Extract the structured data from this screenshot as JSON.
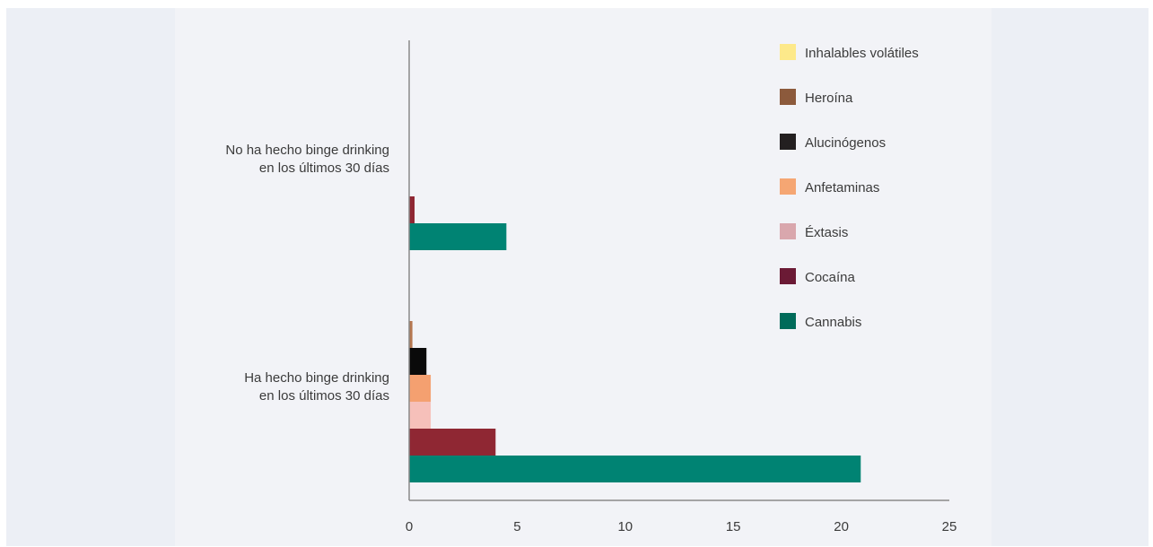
{
  "chart_data": {
    "type": "bar",
    "orientation": "horizontal",
    "title": "",
    "xlabel": "",
    "ylabel": "",
    "xlim": [
      0,
      25
    ],
    "x_ticks": [
      "0",
      "5",
      "10",
      "15",
      "20",
      "25"
    ],
    "grid": false,
    "legend_position": "top-right",
    "categories": [
      {
        "line1": "No ha hecho binge drinking",
        "line2": "en los últimos 30 días"
      },
      {
        "line1": "Ha hecho binge drinking",
        "line2": "en los últimos 30 días"
      }
    ],
    "series": [
      {
        "name": "Inhalables volátiles",
        "legend_color": "#fde98a",
        "bar_color": "#fde98a",
        "values": [
          0,
          0
        ]
      },
      {
        "name": "Heroína",
        "legend_color": "#8c5a3c",
        "bar_color": "#b5764f",
        "values": [
          0,
          0.15
        ]
      },
      {
        "name": "Alucinógenos",
        "legend_color": "#231f20",
        "bar_color": "#0a0a0a",
        "values": [
          0,
          0.8
        ]
      },
      {
        "name": "Anfetaminas",
        "legend_color": "#f5a673",
        "bar_color": "#f4a070",
        "values": [
          0,
          1.0
        ]
      },
      {
        "name": "Éxtasis",
        "legend_color": "#d9a7ad",
        "bar_color": "#f6c0ba",
        "values": [
          0,
          1.0
        ]
      },
      {
        "name": "Cocaína",
        "legend_color": "#6b1a35",
        "bar_color": "#8f2733",
        "values": [
          0.25,
          4.0
        ]
      },
      {
        "name": "Cannabis",
        "legend_color": "#006b5a",
        "bar_color": "#008373",
        "values": [
          4.5,
          20.9
        ]
      }
    ]
  }
}
